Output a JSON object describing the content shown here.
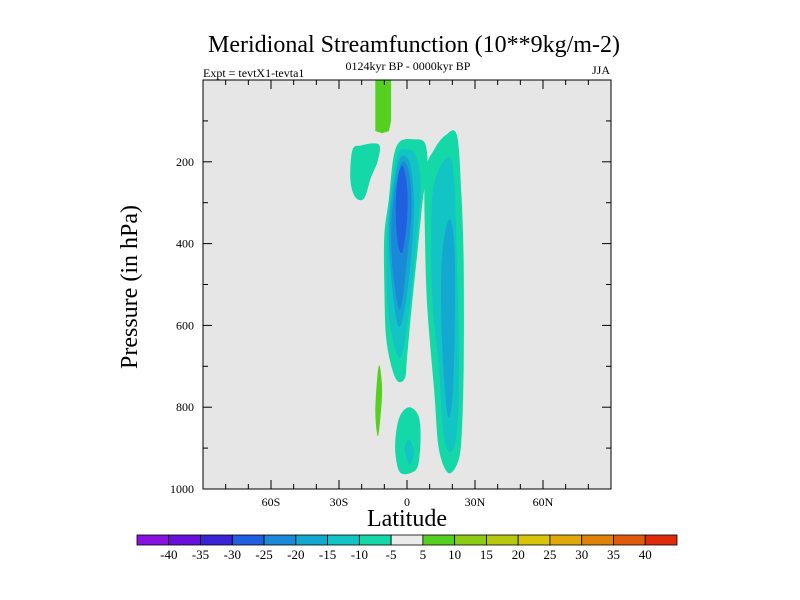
{
  "chart_data": {
    "type": "filled-contour",
    "title": "Meridional Streamfunction (10**9kg/m-2)",
    "subtitle_left": "Expt = tevtX1-tevta1",
    "subtitle_center": "0124kyr BP - 0000kyr BP",
    "subtitle_right": "JJA",
    "xlabel": "Latitude",
    "ylabel": "Pressure (in hPa)",
    "xlim": [
      -90,
      90
    ],
    "ylim": [
      1000,
      0
    ],
    "background_color": "#e6e6e6",
    "x_ticks": [
      {
        "value": -60,
        "label": "60S"
      },
      {
        "value": -30,
        "label": "30S"
      },
      {
        "value": 0,
        "label": "0"
      },
      {
        "value": 30,
        "label": "30N"
      },
      {
        "value": 60,
        "label": "60N"
      }
    ],
    "y_ticks": [
      {
        "value": 200,
        "label": "200"
      },
      {
        "value": 400,
        "label": "400"
      },
      {
        "value": 600,
        "label": "600"
      },
      {
        "value": 800,
        "label": "800"
      },
      {
        "value": 1000,
        "label": "1000"
      }
    ],
    "colorbar": {
      "labels": [
        "-40",
        "-35",
        "-30",
        "-25",
        "-20",
        "-15",
        "-10",
        "-5",
        "5",
        "10",
        "15",
        "20",
        "25",
        "30",
        "35",
        "40"
      ],
      "colors": [
        "#8a12e0",
        "#6a10dc",
        "#3a25d6",
        "#1f5fe0",
        "#1a8ad8",
        "#13a8d0",
        "#12c4c4",
        "#14d8a8",
        "#ebebeb",
        "#55d020",
        "#8ccc14",
        "#b8c80c",
        "#d8c408",
        "#e0a808",
        "#e0820a",
        "#e05a0c",
        "#e02a0c"
      ]
    },
    "contours": [
      {
        "name": "top-positive-plume",
        "level": 5,
        "color": "#55d020",
        "points": [
          [
            -14,
            0
          ],
          [
            -7,
            0
          ],
          [
            -7,
            100
          ],
          [
            -8,
            125
          ],
          [
            -11,
            130
          ],
          [
            -14,
            125
          ],
          [
            -14,
            100
          ]
        ]
      },
      {
        "name": "nh-left-blob",
        "level": -5,
        "color": "#14d8a8",
        "points": [
          [
            -24,
            170
          ],
          [
            -20,
            160
          ],
          [
            -15,
            155
          ],
          [
            -12,
            162
          ],
          [
            -13,
            200
          ],
          [
            -16,
            240
          ],
          [
            -19,
            290
          ],
          [
            -23,
            285
          ],
          [
            -25,
            240
          ]
        ]
      },
      {
        "name": "main-negative-cell-outer",
        "level": -5,
        "color": "#14d8a8",
        "points": [
          [
            -8,
            290
          ],
          [
            -6,
            190
          ],
          [
            -3,
            150
          ],
          [
            3,
            145
          ],
          [
            8,
            155
          ],
          [
            9,
            220
          ],
          [
            7,
            290
          ],
          [
            5,
            400
          ],
          [
            2,
            560
          ],
          [
            0,
            680
          ],
          [
            -1,
            730
          ],
          [
            -5,
            730
          ],
          [
            -9,
            640
          ],
          [
            -10,
            500
          ],
          [
            -10,
            380
          ]
        ]
      },
      {
        "name": "main-negative-cell-10",
        "level": -10,
        "color": "#12c4c4",
        "points": [
          [
            -7,
            270
          ],
          [
            -4,
            180
          ],
          [
            0,
            170
          ],
          [
            4,
            185
          ],
          [
            6,
            260
          ],
          [
            4,
            400
          ],
          [
            1,
            560
          ],
          [
            -3,
            680
          ],
          [
            -8,
            580
          ],
          [
            -9,
            420
          ]
        ]
      },
      {
        "name": "main-negative-cell-15",
        "level": -15,
        "color": "#13a8d0",
        "points": [
          [
            -6,
            260
          ],
          [
            -3,
            190
          ],
          [
            1,
            200
          ],
          [
            3,
            290
          ],
          [
            2,
            420
          ],
          [
            -1,
            560
          ],
          [
            -4,
            600
          ],
          [
            -7,
            480
          ],
          [
            -8,
            360
          ]
        ]
      },
      {
        "name": "main-negative-cell-20",
        "level": -20,
        "color": "#1a8ad8",
        "points": [
          [
            -5,
            260
          ],
          [
            -2,
            200
          ],
          [
            1,
            230
          ],
          [
            2,
            320
          ],
          [
            0,
            440
          ],
          [
            -3,
            560
          ],
          [
            -6,
            480
          ],
          [
            -7,
            360
          ]
        ]
      },
      {
        "name": "main-negative-cell-25",
        "level": -25,
        "color": "#1f5fe0",
        "points": [
          [
            -4,
            240
          ],
          [
            -2,
            210
          ],
          [
            0,
            260
          ],
          [
            0,
            340
          ],
          [
            -2,
            420
          ],
          [
            -4,
            400
          ],
          [
            -5,
            320
          ]
        ]
      },
      {
        "name": "right-negative-cell-outer",
        "level": -5,
        "color": "#14d8a8",
        "points": [
          [
            8,
            230
          ],
          [
            12,
            170
          ],
          [
            17,
            135
          ],
          [
            22,
            135
          ],
          [
            24,
            280
          ],
          [
            25,
            450
          ],
          [
            25,
            700
          ],
          [
            24,
            880
          ],
          [
            22,
            940
          ],
          [
            18,
            960
          ],
          [
            14,
            900
          ],
          [
            12,
            760
          ],
          [
            9,
            560
          ],
          [
            8,
            400
          ]
        ]
      },
      {
        "name": "right-negative-cell-10",
        "level": -10,
        "color": "#12c4c4",
        "points": [
          [
            11,
            300
          ],
          [
            14,
            220
          ],
          [
            19,
            190
          ],
          [
            21,
            260
          ],
          [
            22,
            450
          ],
          [
            23,
            700
          ],
          [
            22,
            860
          ],
          [
            19,
            910
          ],
          [
            16,
            860
          ],
          [
            14,
            700
          ],
          [
            11,
            520
          ]
        ]
      },
      {
        "name": "right-negative-cell-15",
        "level": -15,
        "color": "#13a8d0",
        "points": [
          [
            16,
            400
          ],
          [
            19,
            340
          ],
          [
            21,
            420
          ],
          [
            21,
            620
          ],
          [
            20,
            780
          ],
          [
            18,
            820
          ],
          [
            16,
            700
          ],
          [
            15,
            520
          ]
        ]
      },
      {
        "name": "small-positive-sliver",
        "level": 5,
        "color": "#55d020",
        "points": [
          [
            -13,
            720
          ],
          [
            -12,
            700
          ],
          [
            -11,
            760
          ],
          [
            -12,
            840
          ],
          [
            -13,
            870
          ],
          [
            -14,
            810
          ]
        ]
      },
      {
        "name": "bottom-negative-blob",
        "level": -5,
        "color": "#14d8a8",
        "points": [
          [
            -5,
            870
          ],
          [
            -3,
            820
          ],
          [
            1,
            800
          ],
          [
            5,
            820
          ],
          [
            6,
            870
          ],
          [
            5,
            940
          ],
          [
            2,
            960
          ],
          [
            -3,
            960
          ],
          [
            -5,
            920
          ]
        ]
      },
      {
        "name": "bottom-negative-blob-10",
        "level": -10,
        "color": "#12c4c4",
        "points": [
          [
            -1,
            900
          ],
          [
            1,
            880
          ],
          [
            3,
            910
          ],
          [
            1,
            940
          ]
        ]
      }
    ]
  }
}
